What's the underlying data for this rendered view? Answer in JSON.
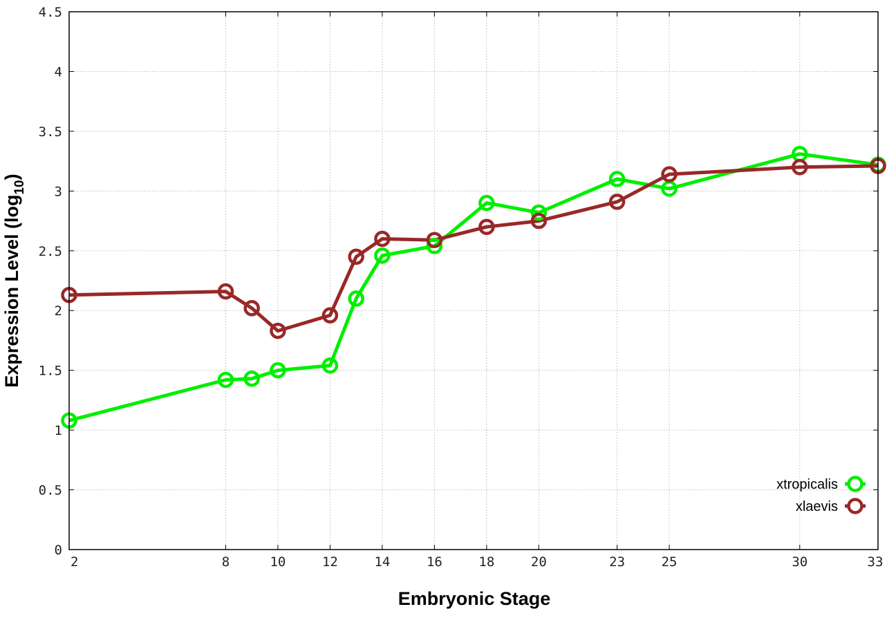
{
  "chart_data": {
    "type": "line",
    "xlabel": "Embryonic Stage",
    "ylabel": "Expression Level (log",
    "ylabel_sub": "10",
    "ylabel_close": ")",
    "ylim": [
      0,
      4.5
    ],
    "xlim": [
      2,
      33
    ],
    "grid": true,
    "legend_position": "bottom-right",
    "x_ticks": [
      "2",
      "8",
      "10",
      "12",
      "14",
      "16",
      "18",
      "20",
      "23",
      "25",
      "30",
      "33"
    ],
    "y_ticks": [
      "0",
      "0.5",
      "1",
      "1.5",
      "2",
      "2.5",
      "3",
      "3.5",
      "4",
      "4.5"
    ],
    "series": [
      {
        "name": "xtropicalis",
        "color": "#00ee00",
        "x": [
          2,
          8,
          9,
          10,
          12,
          13,
          14,
          16,
          18,
          20,
          23,
          25,
          30,
          33
        ],
        "y": [
          1.08,
          1.42,
          1.43,
          1.5,
          1.54,
          2.1,
          2.46,
          2.54,
          2.9,
          2.82,
          3.1,
          3.02,
          3.31,
          3.22
        ]
      },
      {
        "name": "xlaevis",
        "color": "#992828",
        "x": [
          2,
          8,
          9,
          10,
          12,
          13,
          14,
          16,
          18,
          20,
          23,
          25,
          30,
          33
        ],
        "y": [
          2.13,
          2.16,
          2.02,
          1.83,
          1.96,
          2.45,
          2.6,
          2.59,
          2.7,
          2.75,
          2.91,
          3.14,
          3.2,
          3.21
        ]
      }
    ]
  }
}
